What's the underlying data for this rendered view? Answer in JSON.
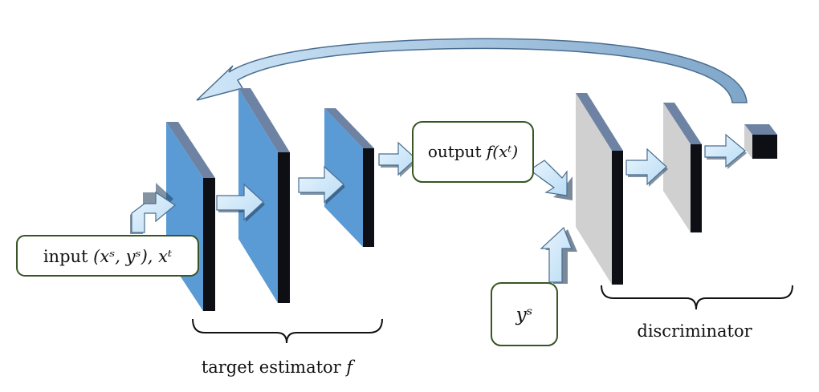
{
  "diagram": {
    "input_box": {
      "text": "input ",
      "math": "(xˢ, yˢ), xᵗ"
    },
    "output_box": {
      "text": "output ",
      "math": "f(xᵗ)"
    },
    "ys_box": {
      "math": "yˢ"
    },
    "estimator_label": {
      "text": "target estimator ",
      "math": "f"
    },
    "discriminator_label": {
      "text": "discriminator"
    },
    "colors": {
      "estimator_face": "#5b9bd5",
      "estimator_top": "#6e83a3",
      "layer_side": "#0d0f14",
      "discriminator_face": "#d0d0d0",
      "arrow_fill": "#d6ecfb",
      "arrow_stroke": "#4a6d8f",
      "box_border": "#375623",
      "feedback_arc": "#a9cbe8"
    }
  }
}
